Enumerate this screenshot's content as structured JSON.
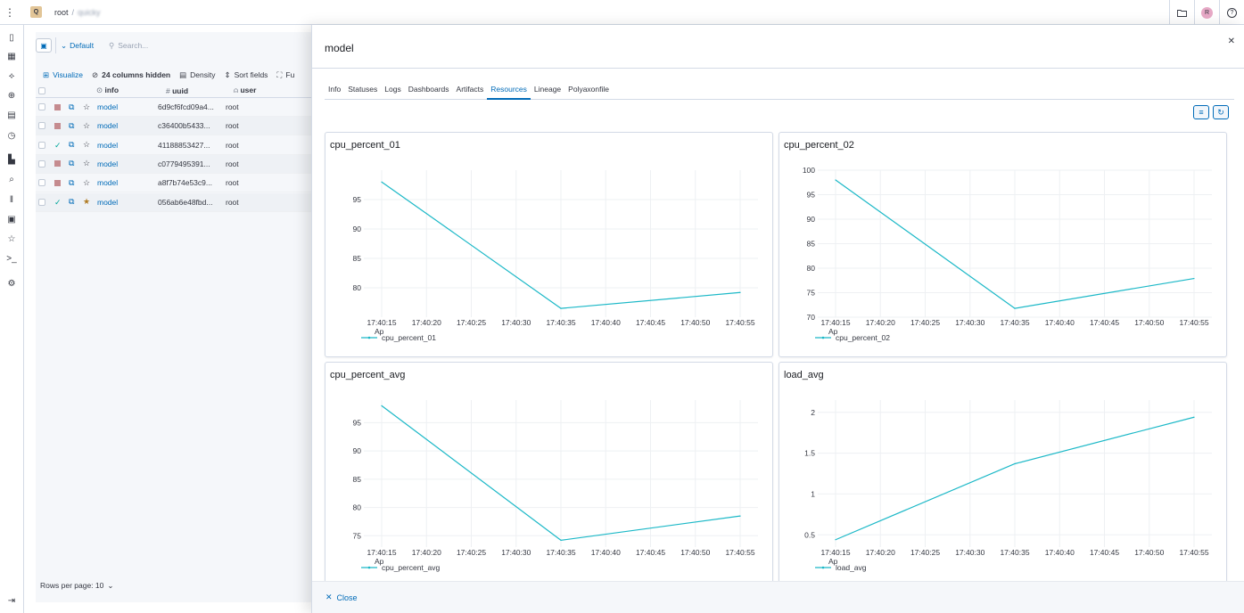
{
  "topbar": {
    "logo": "Q",
    "breadcrumb_root": "root",
    "breadcrumb_project": "quicky"
  },
  "rail": [
    "sidebar-toggle-icon",
    "table-icon",
    "lineage-icon",
    "compare-icon",
    "dashboard-icon",
    "timeline-icon",
    "chart-icon",
    "search-zoom-icon",
    "signal-icon",
    "activity-icon",
    "star-icon",
    "terminal-icon",
    "settings-icon"
  ],
  "left": {
    "default_label": "Default",
    "search_placeholder": "Search...",
    "visualize": "Visualize",
    "columns_hidden": "24 columns hidden",
    "density": "Density",
    "sort_fields": "Sort fields",
    "fu": "Fu",
    "columns": {
      "info": "info",
      "uuid": "uuid",
      "user": "user"
    },
    "rows": [
      {
        "status": "stopped",
        "name": "model",
        "uuid": "6d9cf6fcd09a4...",
        "user": "root",
        "starred": false
      },
      {
        "status": "stopped",
        "name": "model",
        "uuid": "c36400b5433...",
        "user": "root",
        "starred": false
      },
      {
        "status": "done",
        "name": "model",
        "uuid": "41188853427...",
        "user": "root",
        "starred": false
      },
      {
        "status": "stopped",
        "name": "model",
        "uuid": "c0779495391...",
        "user": "root",
        "starred": false
      },
      {
        "status": "stopped",
        "name": "model",
        "uuid": "a8f7b74e53c9...",
        "user": "root",
        "starred": false
      },
      {
        "status": "done",
        "name": "model",
        "uuid": "056ab6e48fbd...",
        "user": "root",
        "starred": true
      }
    ],
    "rows_per_page": "Rows per page: 10"
  },
  "flyout": {
    "title": "model",
    "tabs": [
      "Info",
      "Statuses",
      "Logs",
      "Dashboards",
      "Artifacts",
      "Resources",
      "Lineage",
      "Polyaxonfile"
    ],
    "active_tab": "Resources",
    "close_label": "Close"
  },
  "colors": {
    "series": "#1bb8c7",
    "accent": "#006bb8"
  },
  "chart_data": [
    {
      "type": "line",
      "title": "cpu_percent_01",
      "x": [
        "17:40:15",
        "17:40:20",
        "17:40:25",
        "17:40:30",
        "17:40:35",
        "17:40:40",
        "17:40:45",
        "17:40:50",
        "17:40:55"
      ],
      "date_label": "Ap",
      "series": [
        {
          "name": "cpu_percent_01",
          "points": [
            [
              "17:40:15",
              98
            ],
            [
              "17:40:35",
              76.5
            ],
            [
              "17:40:55",
              79.2
            ]
          ]
        }
      ],
      "yticks": [
        80,
        85,
        90,
        95
      ],
      "ylim": [
        75,
        100
      ]
    },
    {
      "type": "line",
      "title": "cpu_percent_02",
      "x": [
        "17:40:15",
        "17:40:20",
        "17:40:25",
        "17:40:30",
        "17:40:35",
        "17:40:40",
        "17:40:45",
        "17:40:50",
        "17:40:55"
      ],
      "date_label": "Ap",
      "series": [
        {
          "name": "cpu_percent_02",
          "points": [
            [
              "17:40:15",
              98
            ],
            [
              "17:40:35",
              71.8
            ],
            [
              "17:40:55",
              77.9
            ]
          ]
        }
      ],
      "yticks": [
        70,
        75,
        80,
        85,
        90,
        95,
        100
      ],
      "ylim": [
        70,
        100
      ]
    },
    {
      "type": "line",
      "title": "cpu_percent_avg",
      "x": [
        "17:40:15",
        "17:40:20",
        "17:40:25",
        "17:40:30",
        "17:40:35",
        "17:40:40",
        "17:40:45",
        "17:40:50",
        "17:40:55"
      ],
      "date_label": "Ap",
      "series": [
        {
          "name": "cpu_percent_avg",
          "points": [
            [
              "17:40:15",
              98
            ],
            [
              "17:40:35",
              74.2
            ],
            [
              "17:40:55",
              78.5
            ]
          ]
        }
      ],
      "yticks": [
        75,
        80,
        85,
        90,
        95
      ],
      "ylim": [
        73,
        99
      ]
    },
    {
      "type": "line",
      "title": "load_avg",
      "x": [
        "17:40:15",
        "17:40:20",
        "17:40:25",
        "17:40:30",
        "17:40:35",
        "17:40:40",
        "17:40:45",
        "17:40:50",
        "17:40:55"
      ],
      "date_label": "Ap",
      "series": [
        {
          "name": "load_avg",
          "points": [
            [
              "17:40:15",
              0.44
            ],
            [
              "17:40:35",
              1.37
            ],
            [
              "17:40:55",
              1.94
            ]
          ]
        }
      ],
      "yticks": [
        0.5,
        1,
        1.5,
        2
      ],
      "ylim": [
        0.35,
        2.15
      ]
    }
  ]
}
